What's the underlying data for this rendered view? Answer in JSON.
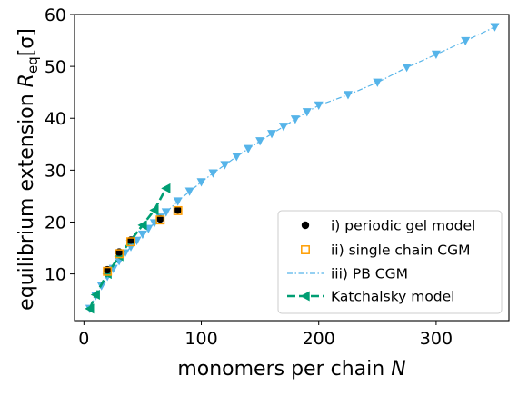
{
  "chart_data": {
    "type": "scatter",
    "xlabel": "monomers per chain ",
    "xlabel_var": "N",
    "ylabel_prefix": "equilibrium extension ",
    "ylabel_var": "R",
    "ylabel_sub": "eq",
    "ylabel_unit": "[σ]",
    "xlim": [
      -8,
      362
    ],
    "ylim": [
      1,
      60
    ],
    "xticks": [
      0,
      100,
      200,
      300
    ],
    "yticks": [
      10,
      20,
      30,
      40,
      50,
      60
    ],
    "grid": false,
    "legend_position": "bottom-right",
    "series": [
      {
        "name": "i) periodic gel model",
        "marker": "filled-circle",
        "color": "#000000",
        "line": "none",
        "x": [
          20,
          30,
          40,
          65,
          80
        ],
        "y": [
          10.8,
          14.2,
          16.5,
          20.6,
          22.3
        ]
      },
      {
        "name": "ii) single chain CGM",
        "marker": "open-square",
        "color": "#ff9d00",
        "line": "none",
        "x": [
          20,
          30,
          40,
          65,
          80
        ],
        "y": [
          10.5,
          13.9,
          16.2,
          20.4,
          22.2
        ]
      },
      {
        "name": "iii) PB CGM",
        "marker": "triangle-down",
        "color": "#56b4e9",
        "line": "dashdot",
        "x": [
          5,
          10,
          15,
          20,
          25,
          30,
          35,
          40,
          45,
          50,
          55,
          60,
          65,
          70,
          80,
          90,
          100,
          110,
          120,
          130,
          140,
          150,
          160,
          170,
          180,
          190,
          200,
          225,
          250,
          275,
          300,
          325,
          350
        ],
        "y": [
          3.3,
          5.8,
          7.7,
          9.5,
          11.0,
          12.5,
          14.0,
          15.2,
          16.4,
          17.6,
          18.7,
          19.8,
          20.9,
          21.9,
          24.0,
          25.9,
          27.7,
          29.4,
          31.0,
          32.6,
          34.1,
          35.6,
          37.0,
          38.4,
          39.8,
          41.2,
          42.5,
          44.5,
          46.9,
          49.8,
          52.3,
          54.9,
          57.6
        ]
      },
      {
        "name": "Katchalsky model",
        "marker": "triangle-left",
        "color": "#009e73",
        "line": "dashed",
        "x": [
          5,
          10,
          20,
          30,
          40,
          50,
          60,
          70
        ],
        "y": [
          3.3,
          6.0,
          10.0,
          13.4,
          16.5,
          19.4,
          22.3,
          26.5
        ]
      }
    ]
  }
}
